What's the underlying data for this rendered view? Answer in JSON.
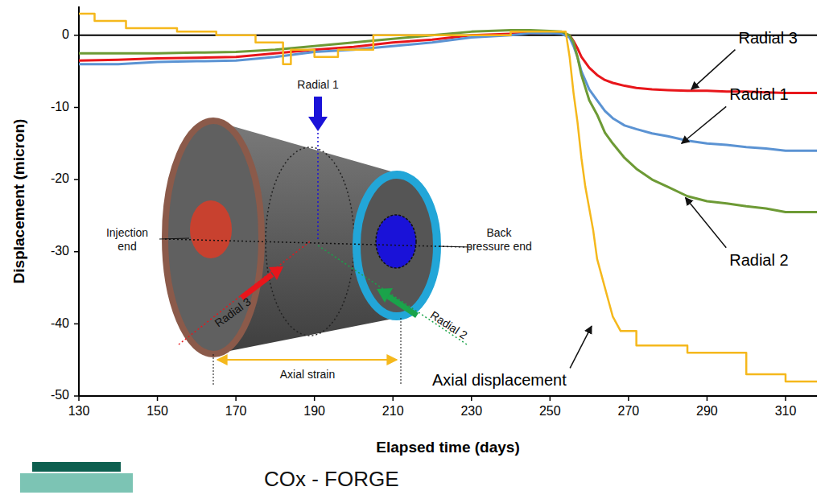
{
  "chart_data": {
    "type": "line",
    "x_label": "Elapsed time (days)",
    "y_label": "Displacement (micron)",
    "xlim": [
      130,
      318
    ],
    "ylim": [
      -50,
      4
    ],
    "xticks": [
      130,
      150,
      170,
      190,
      210,
      230,
      250,
      270,
      290,
      310
    ],
    "yticks": [
      -50,
      -40,
      -30,
      -20,
      -10,
      0
    ],
    "grid": false,
    "series": [
      {
        "name": "Radial 3",
        "color": "#e8161b",
        "x": [
          130,
          140,
          150,
          160,
          170,
          180,
          190,
          200,
          210,
          220,
          230,
          240,
          245,
          250,
          253,
          255,
          256,
          257,
          258,
          260,
          262,
          264,
          266,
          269,
          272,
          276,
          280,
          285,
          290,
          295,
          300,
          305,
          310,
          318
        ],
        "values": [
          -3.5,
          -3.4,
          -3.2,
          -3.1,
          -3,
          -2.5,
          -2,
          -1.6,
          -1,
          -0.6,
          0,
          0.2,
          0.3,
          0.4,
          0.3,
          0,
          -0.8,
          -1.8,
          -3,
          -4.5,
          -5.5,
          -6.2,
          -6.6,
          -7,
          -7.3,
          -7.5,
          -7.6,
          -7.7,
          -7.7,
          -7.8,
          -7.8,
          -7.9,
          -8,
          -8
        ]
      },
      {
        "name": "Radial 1",
        "color": "#5b93d3",
        "x": [
          130,
          140,
          150,
          160,
          170,
          180,
          190,
          200,
          210,
          220,
          230,
          240,
          245,
          250,
          253,
          255,
          256,
          257,
          258,
          260,
          262,
          264,
          266,
          269,
          272,
          276,
          280,
          285,
          290,
          295,
          300,
          305,
          310,
          318
        ],
        "values": [
          -4,
          -4,
          -3.7,
          -3.6,
          -3.5,
          -3,
          -2.3,
          -2,
          -1.5,
          -1,
          -0.3,
          0,
          0.3,
          0.3,
          0.2,
          -0.3,
          -1.5,
          -3,
          -5,
          -7.5,
          -9,
          -10.5,
          -11.5,
          -12.5,
          -13,
          -13.6,
          -14,
          -14.6,
          -15,
          -15.2,
          -15.5,
          -15.7,
          -16,
          -16
        ]
      },
      {
        "name": "Radial 2",
        "color": "#6d9a35",
        "x": [
          130,
          140,
          150,
          160,
          170,
          180,
          190,
          200,
          210,
          220,
          230,
          240,
          245,
          250,
          253,
          255,
          256,
          257,
          258,
          260,
          262,
          264,
          266,
          269,
          272,
          276,
          280,
          285,
          290,
          295,
          300,
          305,
          310,
          318
        ],
        "values": [
          -2.5,
          -2.5,
          -2.5,
          -2.4,
          -2.3,
          -2,
          -1.5,
          -1,
          -0.5,
          0,
          0.5,
          0.7,
          0.7,
          0.6,
          0.5,
          0,
          -1,
          -3,
          -5.5,
          -9,
          -11,
          -13.5,
          -15,
          -17,
          -18.5,
          -20,
          -21,
          -22.3,
          -23,
          -23.3,
          -23.7,
          -24,
          -24.5,
          -24.5
        ]
      },
      {
        "name": "Axial displacement",
        "color": "#f5b81c",
        "x": [
          130,
          134,
          134,
          142,
          142,
          155,
          155,
          165,
          165,
          175,
          175,
          182,
          182,
          184,
          184,
          190,
          190,
          196,
          196,
          205,
          205,
          240,
          240,
          254,
          255,
          256,
          257,
          258,
          259,
          260,
          261,
          262,
          263,
          264,
          265,
          266,
          268,
          272,
          272,
          285,
          285,
          300,
          300,
          310,
          310,
          318
        ],
        "values": [
          3,
          3,
          2,
          2,
          1,
          1,
          0.5,
          0.5,
          0,
          0,
          -1,
          -1,
          -4,
          -4,
          -2,
          -2,
          -3,
          -3,
          -2,
          -2,
          0,
          0,
          0.5,
          0.5,
          -3,
          -8,
          -12,
          -17,
          -21,
          -24,
          -27,
          -31,
          -33,
          -35,
          -37,
          -39,
          -41,
          -41,
          -43,
          -43,
          -44,
          -44,
          -47,
          -47,
          -48,
          -48
        ]
      }
    ],
    "annotations": [
      {
        "text": "Radial 3",
        "label_x": 298,
        "label_y": -0.5,
        "x": 286,
        "y": -7.5
      },
      {
        "text": "Radial 1",
        "label_x": 295.7,
        "label_y": -8.4,
        "x": 283.5,
        "y": -15
      },
      {
        "text": "Radial 2",
        "label_x": 295.7,
        "label_y": -31.3,
        "x": 284.5,
        "y": -22.5
      },
      {
        "text": "Axial displacement",
        "label_x": 220,
        "label_y": -48,
        "x": 260.6,
        "y": -40.3
      }
    ],
    "inset_texts": [
      "Radial 1",
      "Injection end",
      "Back pressure end",
      "Radial 3",
      "Radial 2",
      "Axial strain"
    ],
    "footer": "COx - FORGE"
  }
}
